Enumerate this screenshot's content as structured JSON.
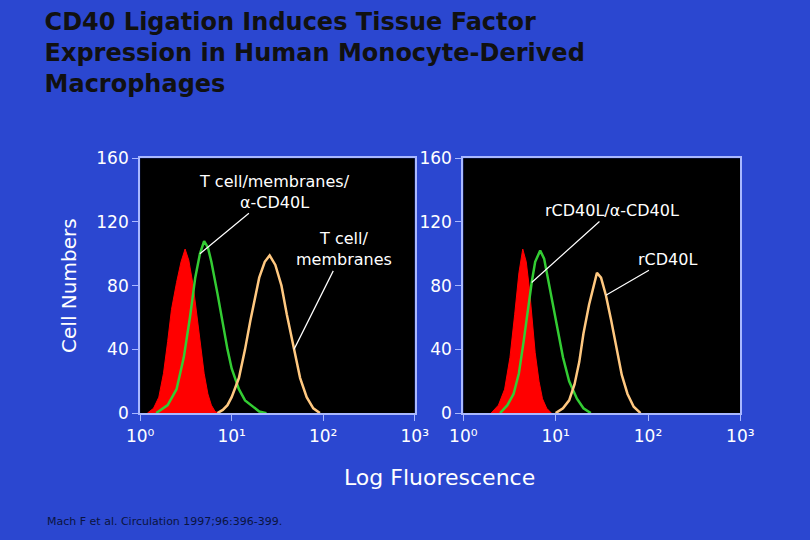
{
  "title": "CD40 Ligation Induces Tissue Factor\nExpression in Human Monocyte-Derived\nMacrophages",
  "x_label": "Log Fluorescence",
  "source": "Mach F et al. Circulation 1997;96:396-399.",
  "chart_data": [
    {
      "type": "line",
      "log": "x",
      "grid": false,
      "y_label": "Cell Numbers",
      "xlim": [
        1,
        1000
      ],
      "xticks": [
        {
          "value": 1,
          "label": "10⁰"
        },
        {
          "value": 10,
          "label": "10¹"
        },
        {
          "value": 100,
          "label": "10²"
        },
        {
          "value": 1000,
          "label": "10³"
        }
      ],
      "ylim": [
        0,
        160
      ],
      "yticks": [
        0,
        40,
        80,
        120,
        160
      ],
      "series": [
        {
          "type": "area",
          "color": "#ff0000",
          "x": [
            1.2,
            1.4,
            1.6,
            1.8,
            2.0,
            2.2,
            2.5,
            2.8,
            3.1,
            3.4,
            3.8,
            4.2,
            4.6,
            5.0,
            5.5,
            6.0,
            6.6,
            7.2
          ],
          "values": [
            0,
            3,
            10,
            25,
            45,
            65,
            82,
            95,
            103,
            96,
            80,
            60,
            40,
            25,
            12,
            5,
            1,
            0
          ]
        },
        {
          "name": "T cell/membranes/\nα-CD40L",
          "color": "#33cc33",
          "x": [
            1.5,
            2,
            2.5,
            3,
            3.5,
            4,
            4.5,
            5,
            5.5,
            6,
            7,
            8,
            9,
            10,
            12,
            14,
            17,
            20,
            24
          ],
          "values": [
            0,
            5,
            15,
            35,
            60,
            85,
            100,
            108,
            104,
            95,
            75,
            55,
            40,
            28,
            15,
            8,
            4,
            1,
            0
          ]
        },
        {
          "name": "T cell/\nmembranes",
          "color": "#ffc880",
          "x": [
            7,
            8,
            9,
            10,
            12,
            14,
            16,
            18,
            20,
            23,
            26,
            30,
            35,
            40,
            48,
            56,
            66,
            78,
            92
          ],
          "values": [
            0,
            2,
            5,
            10,
            22,
            40,
            58,
            72,
            85,
            95,
            99,
            93,
            80,
            62,
            40,
            22,
            10,
            3,
            0
          ]
        }
      ]
    },
    {
      "type": "line",
      "log": "x",
      "grid": false,
      "xlim": [
        1,
        1000
      ],
      "xticks": [
        {
          "value": 1,
          "label": "10⁰"
        },
        {
          "value": 10,
          "label": "10¹"
        },
        {
          "value": 100,
          "label": "10²"
        },
        {
          "value": 1000,
          "label": "10³"
        }
      ],
      "ylim": [
        0,
        160
      ],
      "yticks": [
        0,
        40,
        80,
        120,
        160
      ],
      "series": [
        {
          "type": "area",
          "color": "#ff0000",
          "x": [
            2.0,
            2.4,
            2.8,
            3.2,
            3.6,
            4.0,
            4.4,
            4.8,
            5.2,
            5.6,
            6.0,
            6.6,
            7.2,
            8,
            9
          ],
          "values": [
            0,
            5,
            15,
            35,
            62,
            88,
            103,
            95,
            78,
            58,
            38,
            20,
            9,
            3,
            0
          ]
        },
        {
          "name": "rCD40L/α-CD40L",
          "color": "#33cc33",
          "x": [
            2.5,
            3,
            3.5,
            4,
            4.5,
            5,
            5.5,
            6,
            6.8,
            7.5,
            8.5,
            10,
            12,
            14,
            17,
            20,
            24
          ],
          "values": [
            0,
            5,
            12,
            25,
            45,
            65,
            82,
            95,
            102,
            97,
            80,
            58,
            35,
            20,
            9,
            3,
            0
          ]
        },
        {
          "name": "rCD40L",
          "color": "#ffc880",
          "x": [
            10,
            12,
            14,
            16,
            18,
            20,
            23,
            26,
            28,
            31,
            35,
            40,
            46,
            52,
            60,
            70,
            83
          ],
          "values": [
            0,
            3,
            8,
            18,
            32,
            50,
            68,
            80,
            88,
            85,
            74,
            58,
            40,
            24,
            12,
            4,
            0
          ]
        }
      ]
    }
  ]
}
